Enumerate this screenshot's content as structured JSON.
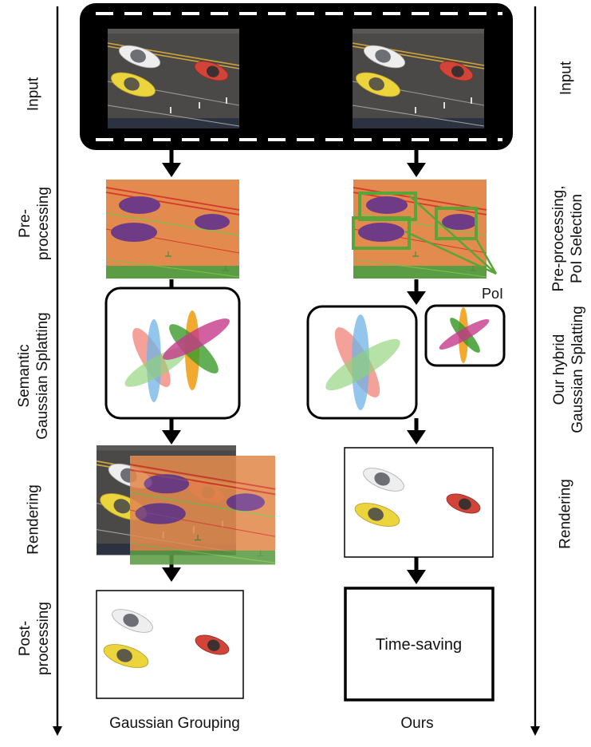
{
  "left_stages": [
    "Input",
    "Pre-\nprocessing",
    "Semantic\nGaussian Splatting",
    "Rendering",
    "Post-\nprocessing"
  ],
  "right_stages": [
    "Input",
    "Pre-processing,\nPoI Selection",
    "Our hybrid\nGaussian Splatting",
    "Rendering"
  ],
  "captions": {
    "left": "Gaussian Grouping",
    "right": "Ours"
  },
  "poi_label": "PoI",
  "time_saving": "Time-saving",
  "colors": {
    "road": "#4a4846",
    "orange_mask": "#e38a4e",
    "purple_car": "#6f3a86",
    "poi_box": "#5aa539",
    "film": "#000000",
    "arrow": "#000000"
  }
}
